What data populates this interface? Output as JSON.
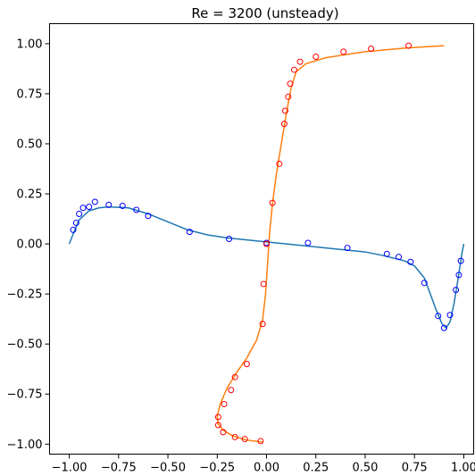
{
  "chart_data": {
    "type": "line",
    "title": "Re = 3200 (unsteady)",
    "xlabel": "",
    "ylabel": "",
    "xlim": [
      -1.1,
      1.05
    ],
    "ylim": [
      -1.05,
      1.1
    ],
    "x_ticks": [
      -1.0,
      -0.75,
      -0.5,
      -0.25,
      0.0,
      0.25,
      0.5,
      0.75,
      1.0
    ],
    "x_tick_labels": [
      "−1.00",
      "−0.75",
      "−0.50",
      "−0.25",
      "0.00",
      "0.25",
      "0.50",
      "0.75",
      "1.00"
    ],
    "y_ticks": [
      -1.0,
      -0.75,
      -0.5,
      -0.25,
      0.0,
      0.25,
      0.5,
      0.75,
      1.0
    ],
    "y_tick_labels": [
      "−1.00",
      "−0.75",
      "−0.50",
      "−0.25",
      "0.00",
      "0.25",
      "0.50",
      "0.75",
      "1.00"
    ],
    "grid": false,
    "series": [
      {
        "kind": "line",
        "color": "#1f77b4",
        "points": [
          [
            -1.0,
            0.0
          ],
          [
            -0.98,
            0.05
          ],
          [
            -0.95,
            0.12
          ],
          [
            -0.9,
            0.165
          ],
          [
            -0.85,
            0.18
          ],
          [
            -0.8,
            0.185
          ],
          [
            -0.7,
            0.18
          ],
          [
            -0.6,
            0.15
          ],
          [
            -0.5,
            0.11
          ],
          [
            -0.4,
            0.07
          ],
          [
            -0.3,
            0.045
          ],
          [
            -0.2,
            0.03
          ],
          [
            -0.1,
            0.02
          ],
          [
            0.0,
            0.01
          ],
          [
            0.1,
            0.0
          ],
          [
            0.2,
            -0.01
          ],
          [
            0.3,
            -0.02
          ],
          [
            0.4,
            -0.03
          ],
          [
            0.5,
            -0.04
          ],
          [
            0.6,
            -0.06
          ],
          [
            0.7,
            -0.085
          ],
          [
            0.75,
            -0.11
          ],
          [
            0.8,
            -0.17
          ],
          [
            0.83,
            -0.25
          ],
          [
            0.86,
            -0.33
          ],
          [
            0.89,
            -0.4
          ],
          [
            0.91,
            -0.42
          ],
          [
            0.93,
            -0.39
          ],
          [
            0.95,
            -0.3
          ],
          [
            0.97,
            -0.18
          ],
          [
            0.99,
            -0.05
          ],
          [
            1.0,
            0.0
          ]
        ]
      },
      {
        "kind": "line",
        "color": "#ff7f0e",
        "points": [
          [
            -0.02,
            -0.99
          ],
          [
            -0.1,
            -0.98
          ],
          [
            -0.17,
            -0.96
          ],
          [
            -0.22,
            -0.93
          ],
          [
            -0.245,
            -0.9
          ],
          [
            -0.25,
            -0.86
          ],
          [
            -0.235,
            -0.8
          ],
          [
            -0.2,
            -0.72
          ],
          [
            -0.15,
            -0.64
          ],
          [
            -0.1,
            -0.57
          ],
          [
            -0.05,
            -0.48
          ],
          [
            -0.02,
            -0.38
          ],
          [
            -0.005,
            -0.25
          ],
          [
            0.005,
            -0.1
          ],
          [
            0.015,
            0.05
          ],
          [
            0.03,
            0.2
          ],
          [
            0.05,
            0.35
          ],
          [
            0.075,
            0.5
          ],
          [
            0.1,
            0.65
          ],
          [
            0.125,
            0.78
          ],
          [
            0.15,
            0.86
          ],
          [
            0.2,
            0.9
          ],
          [
            0.3,
            0.93
          ],
          [
            0.5,
            0.96
          ],
          [
            0.7,
            0.978
          ],
          [
            0.9,
            0.99
          ]
        ]
      },
      {
        "kind": "scatter",
        "color": "#0000ff",
        "points": [
          [
            -0.98,
            0.07
          ],
          [
            -0.965,
            0.105
          ],
          [
            -0.95,
            0.15
          ],
          [
            -0.93,
            0.18
          ],
          [
            -0.9,
            0.185
          ],
          [
            -0.87,
            0.21
          ],
          [
            -0.8,
            0.195
          ],
          [
            -0.73,
            0.19
          ],
          [
            -0.66,
            0.17
          ],
          [
            -0.6,
            0.14
          ],
          [
            -0.39,
            0.06
          ],
          [
            -0.19,
            0.025
          ],
          [
            0.0,
            0.005
          ],
          [
            0.21,
            0.005
          ],
          [
            0.41,
            -0.02
          ],
          [
            0.61,
            -0.05
          ],
          [
            0.67,
            -0.065
          ],
          [
            0.73,
            -0.09
          ],
          [
            0.8,
            -0.195
          ],
          [
            0.87,
            -0.36
          ],
          [
            0.9,
            -0.42
          ],
          [
            0.93,
            -0.355
          ],
          [
            0.96,
            -0.23
          ],
          [
            0.975,
            -0.155
          ],
          [
            0.985,
            -0.085
          ]
        ]
      },
      {
        "kind": "scatter",
        "color": "#ff0000",
        "points": [
          [
            -0.03,
            -0.985
          ],
          [
            -0.11,
            -0.975
          ],
          [
            -0.16,
            -0.965
          ],
          [
            -0.22,
            -0.94
          ],
          [
            -0.245,
            -0.905
          ],
          [
            -0.245,
            -0.865
          ],
          [
            -0.215,
            -0.8
          ],
          [
            -0.18,
            -0.73
          ],
          [
            -0.16,
            -0.665
          ],
          [
            -0.1,
            -0.6
          ],
          [
            -0.02,
            -0.4
          ],
          [
            -0.015,
            -0.2
          ],
          [
            0.0,
            0.0
          ],
          [
            0.03,
            0.205
          ],
          [
            0.065,
            0.4
          ],
          [
            0.09,
            0.6
          ],
          [
            0.095,
            0.665
          ],
          [
            0.11,
            0.735
          ],
          [
            0.12,
            0.8
          ],
          [
            0.14,
            0.87
          ],
          [
            0.17,
            0.91
          ],
          [
            0.25,
            0.935
          ],
          [
            0.39,
            0.96
          ],
          [
            0.53,
            0.975
          ],
          [
            0.72,
            0.99
          ]
        ]
      }
    ]
  }
}
